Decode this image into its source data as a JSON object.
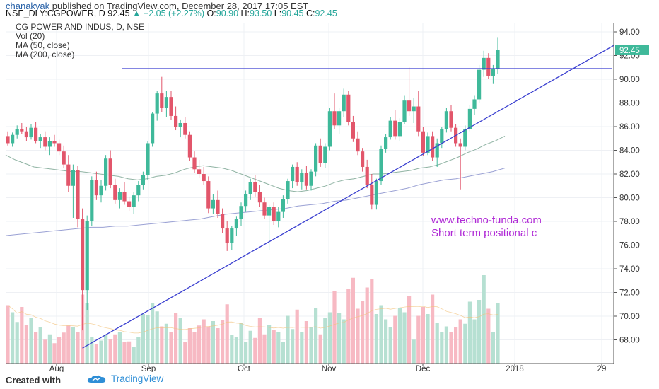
{
  "header": {
    "author": "chanakyak",
    "published_text": "published on TradingView.com, December 28, 2017 17:05 EST",
    "symbol_line": "NSE_DLY:CGPOWER, D",
    "last": "92.45",
    "change": "+2.05 (+2.27%)",
    "o_label": "O:",
    "o_value": "90.90",
    "h_label": "H:",
    "h_value": "93.50",
    "l_label": "L:",
    "l_value": "90.45",
    "c_label": "C:",
    "c_value": "92.45"
  },
  "legend": {
    "title": "CG POWER AND INDUS, D, NSE",
    "vol": "Vol (20)",
    "ma50": "MA (50, close)",
    "ma200": "MA (200, close)"
  },
  "annotations": {
    "website": "www.techno-funda.com",
    "note": "Short term positional c"
  },
  "footer": {
    "created_with": "Created with",
    "brand": "TradingView"
  },
  "colors": {
    "up": "#3fb99a",
    "down": "#e2566b",
    "vol_up": "#b6e0d2",
    "vol_down": "#f7b9c3",
    "trendline": "#3a3fd0",
    "annotation": "#b02ad6",
    "ma50": "#8fb3a3",
    "ma200": "#9aa1d4"
  },
  "chart_data": {
    "type": "candlestick",
    "price_axis": {
      "range": [
        66,
        95
      ],
      "ticks": [
        "94.00",
        "92.00",
        "90.00",
        "88.00",
        "86.00",
        "84.00",
        "82.00",
        "80.00",
        "78.00",
        "76.00",
        "74.00",
        "72.00",
        "70.00",
        "68.00"
      ],
      "last_price_label": "92.45"
    },
    "x_axis": {
      "ticks": [
        "Aug",
        "Sep",
        "Oct",
        "Nov",
        "Dec",
        "2018",
        "29"
      ]
    },
    "candles": [
      [
        85.2,
        85.6,
        84.4,
        84.6
      ],
      [
        84.6,
        85.5,
        84.3,
        85.3
      ],
      [
        85.3,
        86.1,
        85.0,
        85.8
      ],
      [
        85.8,
        86.3,
        85.4,
        85.6
      ],
      [
        85.6,
        86.0,
        84.8,
        85.1
      ],
      [
        85.1,
        86.2,
        84.9,
        85.9
      ],
      [
        85.9,
        86.4,
        84.6,
        84.8
      ],
      [
        84.8,
        85.4,
        84.2,
        85.1
      ],
      [
        85.1,
        85.6,
        84.0,
        84.3
      ],
      [
        84.3,
        85.1,
        83.6,
        84.8
      ],
      [
        84.8,
        85.3,
        84.3,
        84.6
      ],
      [
        84.6,
        84.9,
        83.6,
        83.9
      ],
      [
        83.9,
        84.4,
        82.5,
        82.8
      ],
      [
        82.8,
        83.6,
        80.5,
        81.0
      ],
      [
        81.0,
        82.8,
        78.3,
        82.3
      ],
      [
        82.3,
        82.7,
        77.5,
        78.2
      ],
      [
        78.2,
        79.1,
        68.8,
        72.2
      ],
      [
        72.2,
        78.5,
        70.5,
        78.0
      ],
      [
        78.0,
        81.8,
        77.6,
        81.5
      ],
      [
        81.5,
        82.2,
        79.8,
        80.2
      ],
      [
        80.2,
        81.5,
        79.6,
        81.0
      ],
      [
        81.0,
        83.6,
        80.6,
        83.3
      ],
      [
        83.3,
        84.0,
        80.8,
        81.1
      ],
      [
        81.1,
        81.6,
        79.5,
        79.8
      ],
      [
        79.8,
        80.8,
        79.1,
        80.5
      ],
      [
        80.5,
        81.3,
        79.4,
        79.7
      ],
      [
        79.7,
        80.1,
        78.9,
        79.2
      ],
      [
        79.2,
        80.5,
        78.6,
        80.2
      ],
      [
        80.2,
        81.4,
        79.7,
        81.1
      ],
      [
        81.1,
        82.2,
        80.7,
        81.9
      ],
      [
        81.9,
        84.8,
        81.5,
        84.6
      ],
      [
        84.6,
        87.2,
        84.3,
        87.1
      ],
      [
        87.1,
        89.0,
        86.5,
        88.8
      ],
      [
        88.8,
        90.2,
        87.2,
        87.6
      ],
      [
        87.6,
        89.0,
        86.8,
        88.5
      ],
      [
        88.5,
        89.0,
        86.6,
        86.9
      ],
      [
        86.9,
        87.7,
        85.7,
        86.0
      ],
      [
        86.0,
        86.6,
        85.1,
        86.3
      ],
      [
        86.3,
        86.8,
        85.0,
        85.3
      ],
      [
        85.3,
        85.6,
        83.1,
        83.4
      ],
      [
        83.4,
        83.9,
        82.1,
        82.4
      ],
      [
        82.4,
        83.2,
        81.7,
        82.0
      ],
      [
        82.0,
        82.6,
        81.1,
        81.4
      ],
      [
        81.4,
        81.8,
        78.7,
        79.1
      ],
      [
        79.1,
        80.3,
        78.6,
        79.8
      ],
      [
        79.8,
        80.6,
        78.3,
        78.6
      ],
      [
        78.6,
        79.1,
        77.0,
        77.4
      ],
      [
        77.4,
        78.0,
        75.5,
        76.2
      ],
      [
        76.2,
        77.6,
        75.6,
        77.4
      ],
      [
        77.4,
        78.4,
        76.8,
        78.2
      ],
      [
        78.2,
        79.6,
        77.6,
        79.3
      ],
      [
        79.3,
        80.6,
        78.8,
        80.3
      ],
      [
        80.3,
        81.6,
        79.8,
        81.3
      ],
      [
        81.3,
        81.9,
        80.1,
        80.5
      ],
      [
        80.5,
        81.1,
        79.2,
        79.6
      ],
      [
        79.6,
        80.0,
        78.2,
        78.5
      ],
      [
        78.5,
        79.4,
        75.6,
        79.2
      ],
      [
        79.2,
        79.6,
        77.7,
        78.0
      ],
      [
        78.0,
        79.2,
        77.5,
        78.8
      ],
      [
        78.8,
        80.2,
        78.3,
        79.9
      ],
      [
        79.9,
        81.6,
        79.5,
        81.4
      ],
      [
        81.4,
        82.8,
        80.8,
        82.6
      ],
      [
        82.6,
        83.0,
        81.0,
        81.3
      ],
      [
        81.3,
        82.4,
        80.7,
        82.1
      ],
      [
        82.1,
        82.7,
        80.7,
        81.0
      ],
      [
        81.0,
        82.4,
        80.6,
        82.2
      ],
      [
        82.2,
        84.6,
        81.8,
        84.4
      ],
      [
        84.4,
        85.0,
        82.6,
        82.9
      ],
      [
        82.9,
        84.6,
        82.5,
        84.3
      ],
      [
        84.3,
        87.6,
        84.0,
        87.3
      ],
      [
        87.3,
        88.8,
        85.8,
        86.1
      ],
      [
        86.1,
        87.6,
        85.4,
        87.3
      ],
      [
        87.3,
        89.2,
        86.8,
        88.7
      ],
      [
        88.7,
        89.0,
        86.1,
        86.4
      ],
      [
        86.4,
        86.9,
        84.7,
        85.0
      ],
      [
        85.0,
        85.6,
        83.6,
        83.9
      ],
      [
        83.9,
        84.2,
        82.2,
        82.6
      ],
      [
        82.6,
        83.2,
        80.8,
        81.1
      ],
      [
        81.1,
        82.0,
        79.0,
        79.4
      ],
      [
        79.4,
        81.6,
        79.0,
        81.4
      ],
      [
        81.4,
        84.4,
        81.1,
        84.1
      ],
      [
        84.1,
        85.4,
        83.8,
        85.1
      ],
      [
        85.1,
        86.8,
        84.9,
        86.5
      ],
      [
        86.5,
        87.4,
        84.9,
        85.2
      ],
      [
        85.2,
        86.7,
        84.8,
        86.4
      ],
      [
        86.4,
        88.6,
        86.2,
        88.2
      ],
      [
        88.2,
        91.0,
        86.9,
        87.3
      ],
      [
        87.3,
        88.4,
        86.3,
        87.7
      ],
      [
        87.7,
        89.0,
        85.2,
        85.6
      ],
      [
        85.6,
        86.0,
        83.5,
        83.8
      ],
      [
        83.8,
        85.5,
        83.6,
        85.2
      ],
      [
        85.2,
        85.6,
        83.1,
        83.4
      ],
      [
        83.4,
        85.0,
        82.6,
        84.6
      ],
      [
        84.6,
        86.0,
        84.2,
        85.8
      ],
      [
        85.8,
        87.6,
        85.5,
        87.3
      ],
      [
        87.3,
        87.8,
        85.6,
        85.9
      ],
      [
        85.9,
        86.2,
        84.3,
        84.6
      ],
      [
        84.6,
        85.0,
        80.7,
        84.3
      ],
      [
        84.3,
        86.1,
        84.0,
        85.8
      ],
      [
        85.8,
        87.8,
        85.6,
        87.5
      ],
      [
        87.5,
        88.6,
        87.0,
        88.3
      ],
      [
        88.3,
        91.2,
        88.0,
        90.8
      ],
      [
        90.8,
        92.4,
        90.2,
        91.8
      ],
      [
        91.8,
        92.2,
        90.0,
        90.3
      ],
      [
        90.3,
        91.2,
        89.6,
        90.9
      ],
      [
        90.9,
        93.5,
        90.45,
        92.45
      ]
    ],
    "volume_relative": [
      0.66,
      0.58,
      0.47,
      0.64,
      0.44,
      0.52,
      0.36,
      0.41,
      0.27,
      0.33,
      0.23,
      0.3,
      0.35,
      0.43,
      0.41,
      0.36,
      0.78,
      0.68,
      0.3,
      0.22,
      0.26,
      0.32,
      0.28,
      0.33,
      0.36,
      0.24,
      0.25,
      0.19,
      0.3,
      0.56,
      0.55,
      0.68,
      0.59,
      0.42,
      0.45,
      0.36,
      0.57,
      0.52,
      0.24,
      0.4,
      0.36,
      0.43,
      0.5,
      0.42,
      0.48,
      0.4,
      0.49,
      0.67,
      0.32,
      0.3,
      0.46,
      0.24,
      0.37,
      0.29,
      0.52,
      0.33,
      0.44,
      0.38,
      0.36,
      0.24,
      0.54,
      0.39,
      0.61,
      0.36,
      0.48,
      0.41,
      0.63,
      0.33,
      0.52,
      0.58,
      0.82,
      0.57,
      0.5,
      0.84,
      0.97,
      0.62,
      0.71,
      0.86,
      0.96,
      0.56,
      0.66,
      0.5,
      0.41,
      0.54,
      0.63,
      0.58,
      0.76,
      0.27,
      0.54,
      0.64,
      0.56,
      0.78,
      0.46,
      0.36,
      0.42,
      0.36,
      0.41,
      0.5,
      0.45,
      0.7,
      0.5,
      0.72,
      1.0,
      0.62,
      0.36,
      0.68
    ],
    "horizontal_line": 90.9,
    "trendline": [
      [
        16,
        67.3
      ],
      [
        106,
        87.5
      ]
    ],
    "ma50": [
      83.6,
      83.2,
      82.9,
      82.6,
      82.5,
      82.4,
      82.3,
      82.2,
      82.2,
      82.1,
      82.0,
      81.9,
      81.8,
      81.6,
      81.5,
      81.6,
      81.8,
      81.9,
      82.1,
      82.4,
      82.6,
      82.7,
      82.6,
      82.5,
      82.3,
      82.0,
      81.7,
      81.4,
      81.1,
      80.8,
      80.6,
      80.5,
      80.6,
      80.8,
      81.0,
      81.3,
      81.5,
      81.6,
      81.8,
      82.0,
      82.0,
      82.1,
      82.2,
      82.3,
      82.5,
      82.6,
      82.8,
      83.1,
      83.4,
      83.8,
      84.1,
      84.5,
      84.8,
      85.2
    ],
    "ma200": [
      76.8,
      76.9,
      77.0,
      77.1,
      77.2,
      77.3,
      77.4,
      77.5,
      77.5,
      77.6,
      77.6,
      77.7,
      77.8,
      77.9,
      78.0,
      78.1,
      78.2,
      78.4,
      78.6,
      78.7,
      78.8,
      78.9,
      79.0,
      79.1,
      79.3,
      79.4,
      79.5,
      79.7,
      79.8,
      80.0,
      80.2,
      80.4,
      80.6,
      80.8,
      81.1,
      81.3,
      81.5,
      81.6,
      81.8,
      82.0,
      82.2,
      82.5
    ]
  }
}
